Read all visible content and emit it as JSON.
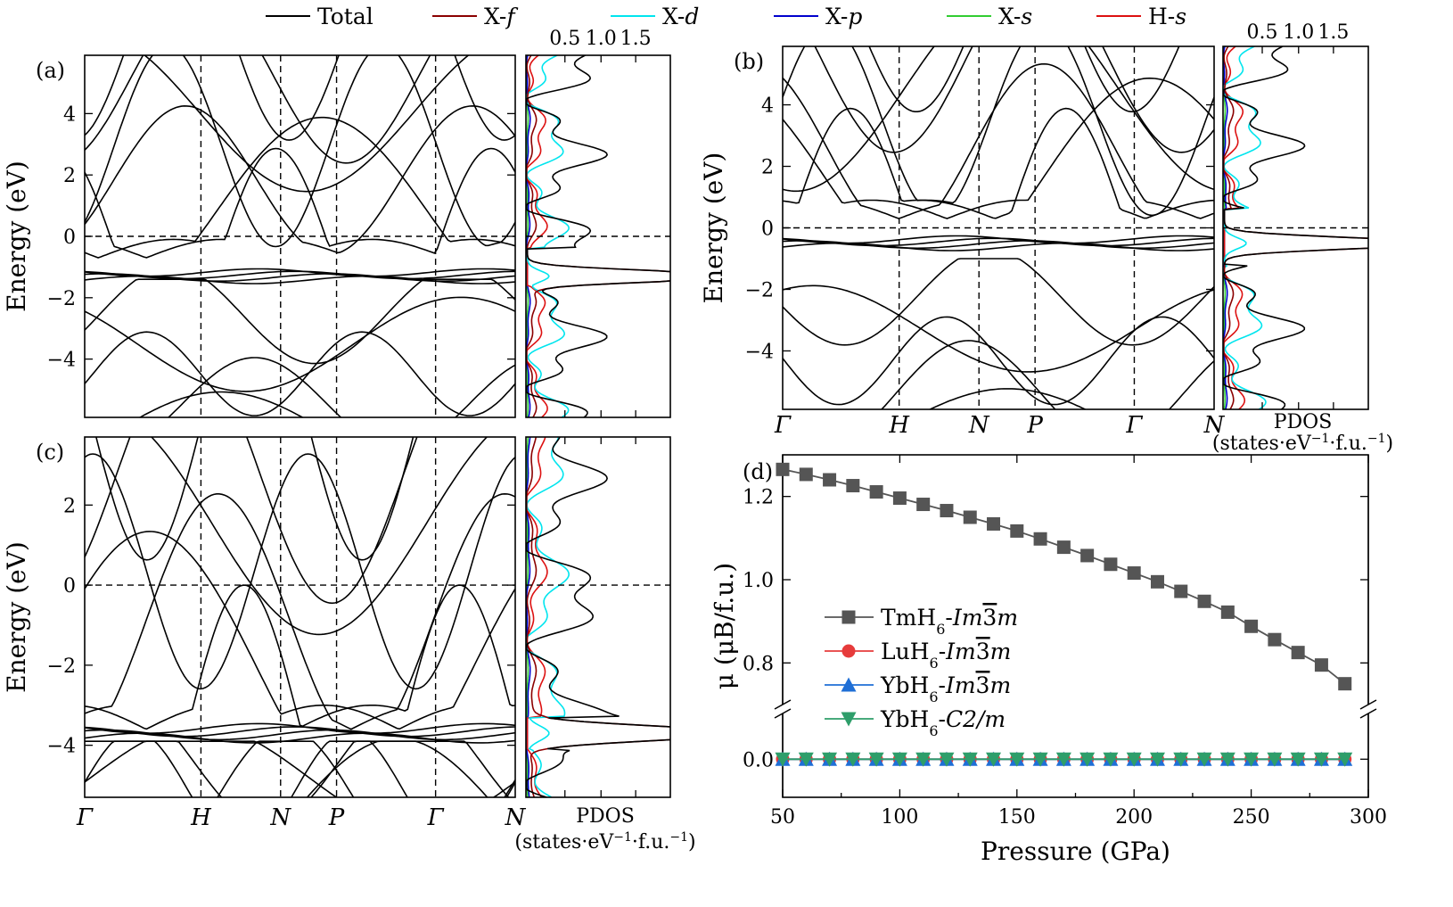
{
  "colors": {
    "total": "#000000",
    "Xf": "#8b0000",
    "Xd": "#00e5ee",
    "Xp": "#0000cd",
    "Xs": "#32cd32",
    "Hs": "#dd1111",
    "tm": "#555555",
    "lu": "#e63b3b",
    "yb_im": "#1f6fd6",
    "yb_c2": "#2e9e6a"
  },
  "legend": [
    {
      "key": "total",
      "label": "Total",
      "color": "#000000"
    },
    {
      "key": "xf",
      "label": "X-",
      "it": "f",
      "color": "#8b0000"
    },
    {
      "key": "xd",
      "label": "X-",
      "it": "d",
      "color": "#00e5ee"
    },
    {
      "key": "xp",
      "label": "X-",
      "it": "p",
      "color": "#0000cd"
    },
    {
      "key": "xs",
      "label": "X-",
      "it": "s",
      "color": "#32cd32"
    },
    {
      "key": "hs",
      "label": "H-",
      "it": "s",
      "color": "#dd1111"
    }
  ],
  "panels": [
    {
      "id": "a",
      "label": "(a)",
      "ylabel": "Energy (eV)",
      "ylim": [
        -5.9,
        5.9
      ],
      "yticks": [
        -4,
        -2,
        0,
        2,
        4
      ],
      "kpoints": [
        "Γ",
        "H",
        "N",
        "P",
        "Γ",
        "N"
      ],
      "show_kpoints": false,
      "pdos_xticks": [
        "0.5",
        "1.0",
        "1.5"
      ],
      "show_pdos_label": false,
      "efermi": 0,
      "fband": -1.3,
      "gap": [
        -1.6,
        -0.4
      ]
    },
    {
      "id": "b",
      "label": "(b)",
      "ylabel": "Energy (eV)",
      "ylim": [
        -5.9,
        5.9
      ],
      "yticks": [
        -4,
        -2,
        0,
        2,
        4
      ],
      "kpoints": [
        "Γ",
        "H",
        "N",
        "P",
        "Γ",
        "N"
      ],
      "show_kpoints": true,
      "pdos_xticks": [
        "0.5",
        "1.0",
        "1.5"
      ],
      "show_pdos_label": true,
      "efermi": 0,
      "fband": -0.5,
      "gap": [
        -1.2,
        0.6
      ]
    },
    {
      "id": "c",
      "label": "(c)",
      "ylabel": "Energy (eV)",
      "ylim": [
        -5.3,
        3.7
      ],
      "yticks": [
        -4,
        -2,
        0,
        2
      ],
      "kpoints": [
        "Γ",
        "H",
        "N",
        "P",
        "Γ",
        "N"
      ],
      "show_kpoints": true,
      "pdos_xticks": [],
      "show_pdos_label": true,
      "efermi": 0,
      "fband": -3.7,
      "gap": [
        -4.1,
        -3.3
      ]
    }
  ],
  "pdos_label": "PDOS",
  "pdos_unit": "(states·eV",
  "pdos_unit_sup1": "−1",
  "pdos_unit_mid": "·f.u.",
  "pdos_unit_sup2": "−1",
  "pdos_unit_end": ")",
  "chart_data": {
    "type": "line",
    "panel": "(d)",
    "xlabel": "Pressure (GPa)",
    "ylabel": "μ (μB/f.u.)",
    "xlim": [
      50,
      300
    ],
    "xticks": [
      50,
      100,
      150,
      200,
      250,
      300
    ],
    "yticks": [
      0.0,
      0.8,
      1.0,
      1.2
    ],
    "x": [
      50,
      60,
      70,
      80,
      90,
      100,
      110,
      120,
      130,
      140,
      150,
      160,
      170,
      180,
      190,
      200,
      210,
      220,
      230,
      240,
      250,
      260,
      270,
      280,
      290
    ],
    "series": [
      {
        "name": "TmH6-Im-3m",
        "formula": "TmH",
        "sub": "6",
        "space_group": "Im",
        "sg_bar": "3",
        "sg_end": "m",
        "marker": "square",
        "color": "#555555",
        "values": [
          1.265,
          1.253,
          1.24,
          1.226,
          1.211,
          1.196,
          1.181,
          1.166,
          1.15,
          1.134,
          1.117,
          1.098,
          1.078,
          1.058,
          1.037,
          1.016,
          0.995,
          0.972,
          0.948,
          0.922,
          0.888,
          0.856,
          0.825,
          0.795,
          0.75
        ]
      },
      {
        "name": "LuH6-Im-3m",
        "formula": "LuH",
        "sub": "6",
        "space_group": "Im",
        "sg_bar": "3",
        "sg_end": "m",
        "marker": "circle",
        "color": "#e63b3b",
        "values": [
          0,
          0,
          0,
          0,
          0,
          0,
          0,
          0,
          0,
          0,
          0,
          0,
          0,
          0,
          0,
          0,
          0,
          0,
          0,
          0,
          0,
          0,
          0,
          0,
          0
        ]
      },
      {
        "name": "YbH6-Im-3m",
        "formula": "YbH",
        "sub": "6",
        "space_group": "Im",
        "sg_bar": "3",
        "sg_end": "m",
        "marker": "triangle-up",
        "color": "#1f6fd6",
        "values": [
          0,
          0,
          0,
          0,
          0,
          0,
          0,
          0,
          0,
          0,
          0,
          0,
          0,
          0,
          0,
          0,
          0,
          0,
          0,
          0,
          0,
          0,
          0,
          0,
          0
        ]
      },
      {
        "name": "YbH6-C2/m",
        "formula": "YbH",
        "sub": "6",
        "space_group": "C",
        "sg_bar": "",
        "sg_end": "2/m",
        "marker": "triangle-down",
        "color": "#2e9e6a",
        "values": [
          0,
          0,
          0,
          0,
          0,
          0,
          0,
          0,
          0,
          0,
          0,
          0,
          0,
          0,
          0,
          0,
          0,
          0,
          0,
          0,
          0,
          0,
          0,
          0,
          0
        ]
      }
    ]
  }
}
